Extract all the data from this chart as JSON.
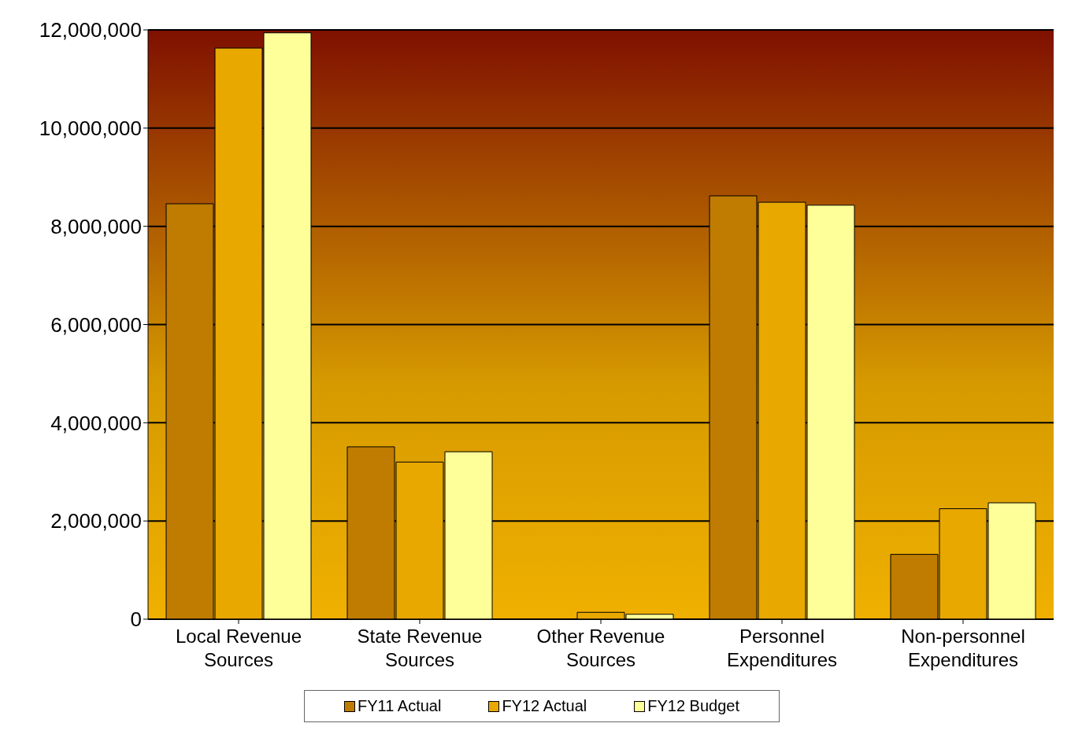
{
  "chart_data": {
    "type": "bar",
    "categories": [
      "Local Revenue Sources",
      "State Revenue Sources",
      "Other Revenue Sources",
      "Personnel Expenditures",
      "Non-personnel Expenditures"
    ],
    "series": [
      {
        "name": "FY11 Actual",
        "color": "#c07c00",
        "values": [
          8460000,
          3510000,
          0,
          8620000,
          1320000
        ]
      },
      {
        "name": "FY12 Actual",
        "color": "#e8a800",
        "values": [
          11630000,
          3200000,
          140000,
          8490000,
          2250000
        ]
      },
      {
        "name": "FY12 Budget",
        "color": "#ffff99",
        "values": [
          11940000,
          3410000,
          100000,
          8430000,
          2370000
        ]
      }
    ],
    "ylim": [
      0,
      12000000
    ],
    "yticks": [
      {
        "value": 0,
        "label": "0"
      },
      {
        "value": 2000000,
        "label": "2,000,000"
      },
      {
        "value": 4000000,
        "label": "4,000,000"
      },
      {
        "value": 6000000,
        "label": "6,000,000"
      },
      {
        "value": 8000000,
        "label": "8,000,000"
      },
      {
        "value": 10000000,
        "label": "10,000,000"
      },
      {
        "value": 12000000,
        "label": "12,000,000"
      }
    ],
    "grid": "y",
    "legend": "bottom"
  }
}
